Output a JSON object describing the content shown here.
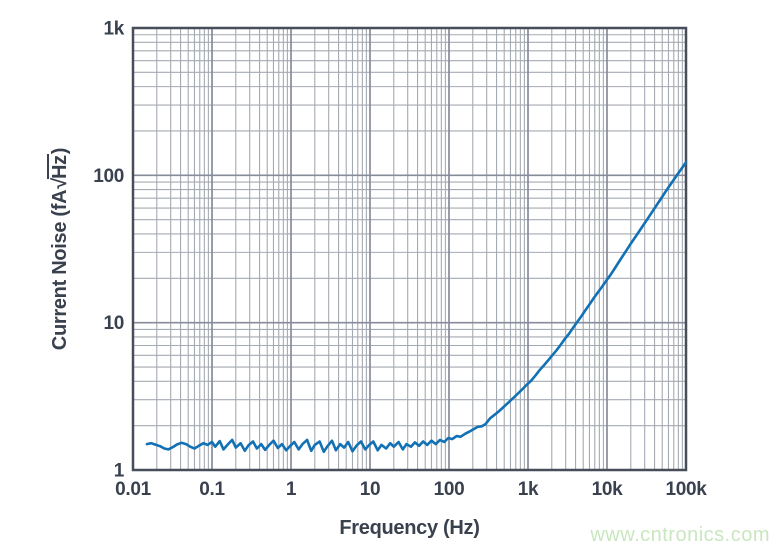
{
  "watermark": {
    "text": "www.cntronics.com",
    "color": "#c9e7bf"
  },
  "colors": {
    "curve": "#1271b5",
    "frame": "#474d59",
    "grid_minor": "#a4aab2",
    "grid_major": "#868c99",
    "text": "#39404e",
    "background": "#ffffff"
  },
  "chart_data": {
    "type": "line",
    "title": "",
    "xlabel": "Frequency (Hz)",
    "ylabel": {
      "prefix": "Current Noise (fA",
      "radical_sign": "√",
      "radicand": "Hz",
      "suffix": ")"
    },
    "legend": "none",
    "grid": "log minor and major gridlines on both axes",
    "x_axis": {
      "scale": "log",
      "min": 0.01,
      "max": 100000,
      "ticks": [
        {
          "value": 0.01,
          "label": "0.01"
        },
        {
          "value": 0.1,
          "label": "0.1"
        },
        {
          "value": 1,
          "label": "1"
        },
        {
          "value": 10,
          "label": "10"
        },
        {
          "value": 100,
          "label": "100"
        },
        {
          "value": 1000,
          "label": "1k"
        },
        {
          "value": 10000,
          "label": "10k"
        },
        {
          "value": 100000,
          "label": "100k"
        }
      ]
    },
    "y_axis": {
      "scale": "log",
      "min": 1,
      "max": 1000,
      "ticks": [
        {
          "value": 1,
          "label": "1"
        },
        {
          "value": 10,
          "label": "10"
        },
        {
          "value": 100,
          "label": "100"
        },
        {
          "value": 1000,
          "label": "1k"
        }
      ]
    },
    "series": [
      {
        "name": "current-noise",
        "color": "#1271b5",
        "points": [
          [
            0.015,
            1.5
          ],
          [
            0.017,
            1.52
          ],
          [
            0.019,
            1.49
          ],
          [
            0.022,
            1.45
          ],
          [
            0.025,
            1.4
          ],
          [
            0.028,
            1.38
          ],
          [
            0.032,
            1.43
          ],
          [
            0.036,
            1.49
          ],
          [
            0.041,
            1.53
          ],
          [
            0.047,
            1.5
          ],
          [
            0.053,
            1.44
          ],
          [
            0.06,
            1.4
          ],
          [
            0.068,
            1.46
          ],
          [
            0.078,
            1.52
          ],
          [
            0.088,
            1.48
          ],
          [
            0.1,
            1.55
          ],
          [
            0.11,
            1.44
          ],
          [
            0.125,
            1.57
          ],
          [
            0.14,
            1.38
          ],
          [
            0.16,
            1.5
          ],
          [
            0.18,
            1.6
          ],
          [
            0.2,
            1.42
          ],
          [
            0.23,
            1.52
          ],
          [
            0.26,
            1.35
          ],
          [
            0.29,
            1.47
          ],
          [
            0.33,
            1.56
          ],
          [
            0.37,
            1.4
          ],
          [
            0.42,
            1.5
          ],
          [
            0.47,
            1.37
          ],
          [
            0.53,
            1.48
          ],
          [
            0.6,
            1.58
          ],
          [
            0.68,
            1.41
          ],
          [
            0.77,
            1.5
          ],
          [
            0.87,
            1.36
          ],
          [
            0.98,
            1.46
          ],
          [
            1.1,
            1.55
          ],
          [
            1.25,
            1.38
          ],
          [
            1.4,
            1.5
          ],
          [
            1.6,
            1.6
          ],
          [
            1.8,
            1.35
          ],
          [
            2.0,
            1.48
          ],
          [
            2.3,
            1.56
          ],
          [
            2.6,
            1.33
          ],
          [
            2.9,
            1.45
          ],
          [
            3.3,
            1.58
          ],
          [
            3.7,
            1.36
          ],
          [
            4.2,
            1.5
          ],
          [
            4.7,
            1.42
          ],
          [
            5.3,
            1.55
          ],
          [
            6.0,
            1.34
          ],
          [
            6.8,
            1.47
          ],
          [
            7.7,
            1.56
          ],
          [
            8.7,
            1.38
          ],
          [
            9.8,
            1.48
          ],
          [
            11,
            1.56
          ],
          [
            12.5,
            1.36
          ],
          [
            14,
            1.48
          ],
          [
            16,
            1.4
          ],
          [
            18,
            1.52
          ],
          [
            20,
            1.44
          ],
          [
            23,
            1.55
          ],
          [
            26,
            1.38
          ],
          [
            29,
            1.5
          ],
          [
            33,
            1.44
          ],
          [
            37,
            1.54
          ],
          [
            42,
            1.46
          ],
          [
            47,
            1.56
          ],
          [
            53,
            1.48
          ],
          [
            60,
            1.58
          ],
          [
            68,
            1.5
          ],
          [
            77,
            1.6
          ],
          [
            87,
            1.55
          ],
          [
            98,
            1.65
          ],
          [
            110,
            1.62
          ],
          [
            125,
            1.7
          ],
          [
            140,
            1.68
          ],
          [
            160,
            1.76
          ],
          [
            180,
            1.82
          ],
          [
            200,
            1.88
          ],
          [
            230,
            1.96
          ],
          [
            260,
            1.98
          ],
          [
            290,
            2.05
          ],
          [
            330,
            2.24
          ],
          [
            370,
            2.35
          ],
          [
            420,
            2.48
          ],
          [
            470,
            2.62
          ],
          [
            530,
            2.78
          ],
          [
            600,
            2.96
          ],
          [
            680,
            3.15
          ],
          [
            770,
            3.36
          ],
          [
            870,
            3.58
          ],
          [
            980,
            3.82
          ],
          [
            1100,
            4.05
          ],
          [
            1250,
            4.4
          ],
          [
            1400,
            4.75
          ],
          [
            1600,
            5.15
          ],
          [
            1800,
            5.55
          ],
          [
            2000,
            5.95
          ],
          [
            2300,
            6.5
          ],
          [
            2600,
            7.1
          ],
          [
            2900,
            7.7
          ],
          [
            3300,
            8.4
          ],
          [
            3700,
            9.2
          ],
          [
            4200,
            10.1
          ],
          [
            4700,
            11.0
          ],
          [
            5300,
            12.1
          ],
          [
            6000,
            13.3
          ],
          [
            6800,
            14.7
          ],
          [
            7700,
            16.1
          ],
          [
            8700,
            17.6
          ],
          [
            9800,
            19.3
          ],
          [
            11000,
            21.0
          ],
          [
            12500,
            23.3
          ],
          [
            14000,
            25.6
          ],
          [
            16000,
            28.6
          ],
          [
            18000,
            31.5
          ],
          [
            20000,
            34.4
          ],
          [
            23000,
            38.4
          ],
          [
            26000,
            42.3
          ],
          [
            29000,
            46.1
          ],
          [
            33000,
            51.2
          ],
          [
            37000,
            56.1
          ],
          [
            42000,
            62.1
          ],
          [
            47000,
            68.0
          ],
          [
            53000,
            75.0
          ],
          [
            60000,
            82.8
          ],
          [
            68000,
            91.4
          ],
          [
            77000,
            100.5
          ],
          [
            87000,
            110.3
          ],
          [
            100000,
            122.5
          ]
        ]
      }
    ]
  }
}
